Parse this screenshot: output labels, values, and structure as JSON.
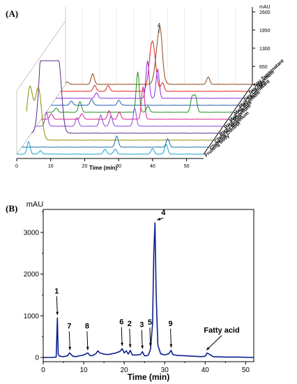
{
  "panel_a": {
    "label": "(A)",
    "z_unit": "mAU",
    "z_ticks": [
      "2600",
      "1950",
      "1300",
      "650",
      "0"
    ],
    "x_ticks": [
      "0",
      "10",
      "20",
      "30",
      "40",
      "50"
    ],
    "x_label": "Time (min)",
    "peak_marker": "4",
    "series_labels": [
      "Soy Supernatant",
      "Soy Mycelium",
      "Soy Control",
      "Malt Supernatant",
      "Malt Mycelium",
      "Malt Control",
      "Rice Mycelium",
      "Rice Control",
      "Cheerios Mycelium",
      "Cheerios Control",
      "Fruiting body"
    ],
    "series_colors": [
      "#8B4513",
      "#E0201E",
      "#8A2BE2",
      "#1F5FBF",
      "#1E8C1E",
      "#D91E8A",
      "#8E44D6",
      "#5B2A86",
      "#8B8B00",
      "#1E6DAA",
      "#1AA0C8"
    ],
    "chart_data": {
      "type": "line",
      "title": "",
      "xlabel": "Time (min)",
      "ylabel": "mAU",
      "xlim": [
        0,
        55
      ],
      "zlim": [
        0,
        2600
      ],
      "series": [
        {
          "name": "Soy Supernatant",
          "peaks": [
            [
              0.5,
              80
            ],
            [
              8,
              380
            ],
            [
              27.5,
              1700
            ],
            [
              28,
              520
            ],
            [
              42,
              260
            ]
          ]
        },
        {
          "name": "Soy Mycelium",
          "peaks": [
            [
              10,
              220
            ],
            [
              14,
              210
            ],
            [
              27,
              1800
            ],
            [
              30,
              300
            ]
          ]
        },
        {
          "name": "Soy Control",
          "peaks": [
            [
              12,
              200
            ],
            [
              27,
              1350
            ],
            [
              30,
              1050
            ]
          ]
        },
        {
          "name": "Malt Supernatant",
          "peaks": [
            [
              6,
              150
            ],
            [
              12,
              220
            ],
            [
              20,
              180
            ]
          ]
        },
        {
          "name": "Malt Mycelium",
          "peaks": [
            [
              3,
              150
            ],
            [
              10,
              380
            ],
            [
              27,
              1450
            ],
            [
              30,
              220
            ],
            [
              43,
              540
            ],
            [
              44,
              580
            ]
          ]
        },
        {
          "name": "Malt Control",
          "peaks": [
            [
              3,
              200
            ],
            [
              12,
              200
            ],
            [
              20,
              300
            ],
            [
              23,
              260
            ],
            [
              30,
              1170
            ]
          ]
        },
        {
          "name": "Rice Mycelium",
          "peaks": [
            [
              3,
              500
            ],
            [
              12,
              300
            ],
            [
              19,
              400
            ],
            [
              22,
              350
            ],
            [
              29,
              650
            ]
          ]
        },
        {
          "name": "Rice Control",
          "peaks": [
            [
              3,
              2200
            ],
            [
              4,
              2450
            ],
            [
              6,
              2500
            ],
            [
              8,
              2500
            ]
          ]
        },
        {
          "name": "Cheerios Mycelium",
          "peaks": [
            [
              1,
              1900
            ],
            [
              3.5,
              1850
            ]
          ]
        },
        {
          "name": "Cheerios Control",
          "peaks": [
            [
              28,
              400
            ],
            [
              43,
              300
            ]
          ]
        },
        {
          "name": "Fruiting body",
          "peaks": [
            [
              3.5,
              450
            ],
            [
              7,
              120
            ],
            [
              26,
              180
            ],
            [
              29,
              180
            ],
            [
              40,
              200
            ],
            [
              44,
              350
            ]
          ]
        }
      ]
    }
  },
  "panel_b": {
    "label": "(B)",
    "y_unit": "mAU",
    "chart_data": {
      "type": "line",
      "title": "",
      "xlabel": "Time (min)",
      "ylabel": "mAU",
      "xlim": [
        0,
        52
      ],
      "ylim": [
        -100,
        3550
      ],
      "x_ticks": [
        0,
        10,
        20,
        30,
        40,
        50
      ],
      "y_ticks": [
        0,
        1000,
        2000,
        3000
      ],
      "grid": false,
      "series": [
        {
          "name": "",
          "color": "#0B1F8C",
          "x": [
            0,
            2,
            3.2,
            3.5,
            3.7,
            4,
            5,
            6,
            6.5,
            7,
            7.3,
            8,
            9,
            10,
            11,
            11.5,
            12,
            13,
            13.5,
            14,
            15,
            16,
            17,
            18,
            19,
            19.5,
            20,
            20.5,
            21,
            21.5,
            22,
            23,
            24,
            24.5,
            25,
            25.5,
            26,
            26.5,
            27,
            27.3,
            27.6,
            27.9,
            28.3,
            29,
            30,
            31,
            31.6,
            32,
            33,
            35,
            37,
            39,
            40,
            40.5,
            42,
            45,
            48,
            52
          ],
          "y": [
            0,
            0,
            10,
            950,
            80,
            30,
            20,
            40,
            110,
            60,
            30,
            20,
            40,
            60,
            110,
            50,
            40,
            90,
            160,
            110,
            80,
            70,
            90,
            110,
            150,
            210,
            110,
            160,
            80,
            170,
            60,
            60,
            70,
            140,
            40,
            40,
            60,
            200,
            800,
            2500,
            3230,
            1500,
            300,
            90,
            60,
            90,
            170,
            70,
            50,
            40,
            30,
            20,
            30,
            110,
            20,
            10,
            10,
            0
          ]
        }
      ],
      "annotations": [
        {
          "label": "1",
          "x": 3.5,
          "y": 950
        },
        {
          "label": "7",
          "x": 6.6,
          "y": 110
        },
        {
          "label": "8",
          "x": 11,
          "y": 110
        },
        {
          "label": "6",
          "x": 19.5,
          "y": 210
        },
        {
          "label": "2",
          "x": 21.5,
          "y": 170
        },
        {
          "label": "3",
          "x": 24.5,
          "y": 140
        },
        {
          "label": "5",
          "x": 26.5,
          "y": 200
        },
        {
          "label": "4",
          "x": 27.6,
          "y": 3230
        },
        {
          "label": "9",
          "x": 31.6,
          "y": 170
        },
        {
          "label": "Fatty acid",
          "x": 40.3,
          "y": 110
        }
      ]
    }
  }
}
